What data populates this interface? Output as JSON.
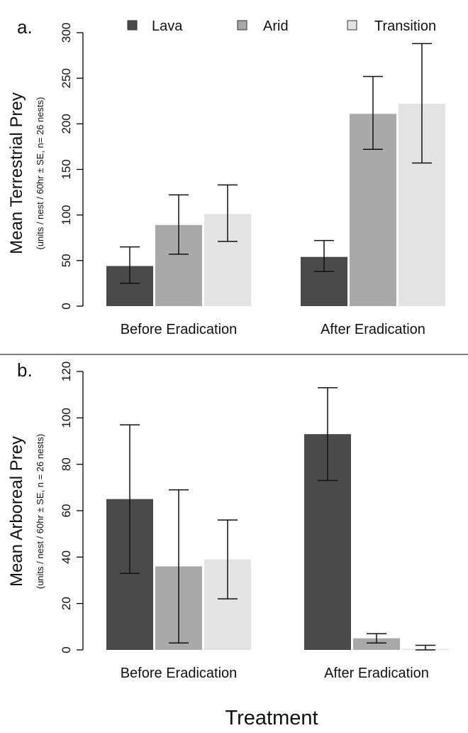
{
  "legend": [
    {
      "label": "Lava",
      "color": "#4a4a4a"
    },
    {
      "label": "Arid",
      "color": "#a9a9a9"
    },
    {
      "label": "Transition",
      "color": "#e3e3e3"
    }
  ],
  "xlabel_shared": "Treatment",
  "chart_data": [
    {
      "type": "bar",
      "panel_label": "a.",
      "ylabel": "Mean Terrestrial Prey",
      "ylabel_sub": "(units / nest / 60hr ± SE, n= 26 nests)",
      "categories": [
        "Before Eradication",
        "After Eradication"
      ],
      "ylim": [
        0,
        300
      ],
      "yticks": [
        "0",
        "50",
        "100",
        "150",
        "200",
        "250",
        "300"
      ],
      "series": [
        {
          "name": "Lava",
          "values": [
            44,
            54
          ],
          "err_low": [
            25,
            38
          ],
          "err_high": [
            65,
            72
          ]
        },
        {
          "name": "Arid",
          "values": [
            89,
            211
          ],
          "err_low": [
            57,
            172
          ],
          "err_high": [
            122,
            252
          ]
        },
        {
          "name": "Transition",
          "values": [
            101,
            222
          ],
          "err_low": [
            71,
            157
          ],
          "err_high": [
            133,
            288
          ]
        }
      ]
    },
    {
      "type": "bar",
      "panel_label": "b.",
      "ylabel": "Mean Arboreal Prey",
      "ylabel_sub": "(units / nest / 60hr ± SE, n = 26 nests)",
      "categories": [
        "Before Eradication",
        "After Eradication"
      ],
      "ylim": [
        0,
        120
      ],
      "yticks": [
        "0",
        "20",
        "40",
        "60",
        "80",
        "100",
        "120"
      ],
      "series": [
        {
          "name": "Lava",
          "values": [
            65,
            93
          ],
          "err_low": [
            33,
            73
          ],
          "err_high": [
            97,
            113
          ]
        },
        {
          "name": "Arid",
          "values": [
            36,
            5
          ],
          "err_low": [
            3,
            3
          ],
          "err_high": [
            69,
            7
          ]
        },
        {
          "name": "Transition",
          "values": [
            39,
            0.5
          ],
          "err_low": [
            22,
            0
          ],
          "err_high": [
            56,
            2
          ]
        }
      ]
    }
  ]
}
